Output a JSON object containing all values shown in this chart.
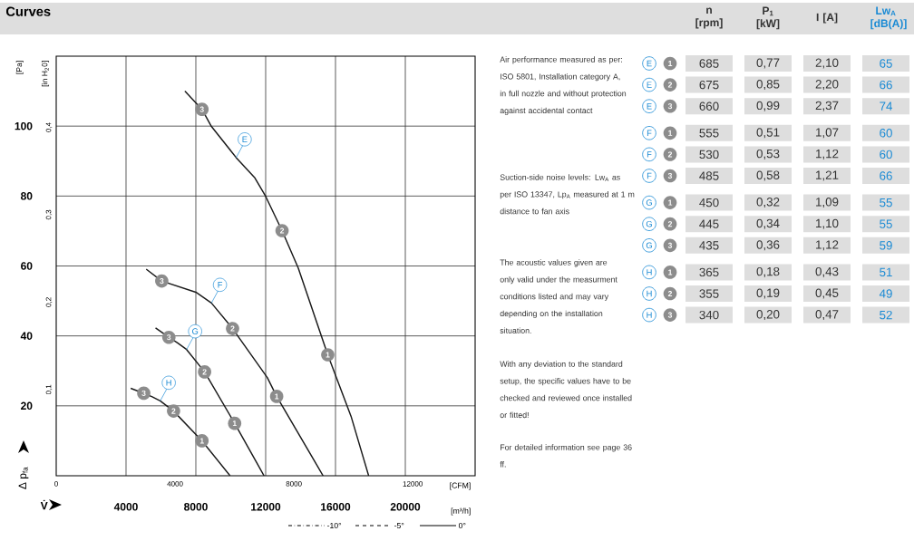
{
  "chart_data": [
    {
      "type": "line",
      "title": "Curves",
      "xlabel": "[m³/h]",
      "ylabel": "[Pa]",
      "x2label": "[CFM]",
      "y2label": "[in H$_{2}$0]",
      "xlim": [
        0,
        24000
      ],
      "xticks": [
        4000,
        8000,
        12000,
        16000,
        20000
      ],
      "ylim": [
        0,
        120
      ],
      "yticks": [
        20,
        40,
        60,
        80,
        100
      ],
      "x2lim": [
        0,
        14100
      ],
      "x2ticks": [
        0,
        4000,
        8000,
        12000
      ],
      "y2lim": [
        0,
        0.48
      ],
      "y2ticks": [
        {
          "value": 0.1,
          "label": "0,1"
        },
        {
          "value": 0.2,
          "label": "0,2"
        },
        {
          "value": 0.3,
          "label": "0,3"
        },
        {
          "value": 0.4,
          "label": "0,4"
        }
      ],
      "grid": true,
      "marker": "none",
      "line_style": "solid",
      "series": [
        {
          "name": "E",
          "color": "#1a1a1a",
          "x": [
            7371,
            8350,
            8892,
            10309,
            11381,
            12000,
            12938,
            13866,
            15557,
            16892,
            17900
          ],
          "values": [
            110,
            104.8,
            99.9,
            91,
            85.2,
            79.9,
            70.1,
            59.4,
            34.6,
            17,
            0
          ]
        },
        {
          "name": "F",
          "color": "#1a1a1a",
          "x": [
            5155,
            6046,
            8000,
            8892,
            10103,
            12093,
            12629,
            15290
          ],
          "values": [
            59.1,
            55.7,
            52.5,
            49.4,
            42.1,
            28.1,
            22.7,
            0
          ]
        },
        {
          "name": "G",
          "color": "#1a1a1a",
          "x": [
            5691,
            6454,
            6950,
            7469,
            8500,
            10222,
            11907
          ],
          "values": [
            42.3,
            39.6,
            38,
            36.1,
            29.7,
            15,
            0
          ]
        },
        {
          "name": "H",
          "color": "#1a1a1a",
          "x": [
            4268,
            5015,
            5500,
            5959,
            6722,
            8350,
            9959
          ],
          "values": [
            25,
            23.6,
            22.6,
            21.4,
            18.5,
            10,
            0
          ]
        }
      ],
      "annotations": [
        "Δ p$_{fa}$",
        "V̇",
        "-10°",
        "-5°",
        "0°",
        {
          "text": "3",
          "x": 8350,
          "y": 104.8
        },
        {
          "text": "2",
          "x": 12938,
          "y": 70.1
        },
        {
          "text": "1",
          "x": 15557,
          "y": 34.6
        },
        {
          "text": "3",
          "x": 6046,
          "y": 55.7
        },
        {
          "text": "2",
          "x": 10103,
          "y": 42.1
        },
        {
          "text": "1",
          "x": 12629,
          "y": 22.7
        },
        {
          "text": "3",
          "x": 6454,
          "y": 39.6
        },
        {
          "text": "2",
          "x": 8500,
          "y": 29.7
        },
        {
          "text": "1",
          "x": 10222,
          "y": 15
        },
        {
          "text": "3",
          "x": 5015,
          "y": 23.6
        },
        {
          "text": "2",
          "x": 6722,
          "y": 18.5
        },
        {
          "text": "1",
          "x": 8350,
          "y": 10
        }
      ]
    },
    {
      "type": "other",
      "categories": [
        null,
        null,
        "n [rpm]",
        "P$_{1}$ [kW]",
        "I [A]",
        "Lw$_{A}$ [dB(A)]"
      ],
      "cell_labels": [
        [
          "E",
          "1",
          "685",
          "0,77",
          "2,10",
          "65"
        ],
        [
          "E",
          "2",
          "675",
          "0,85",
          "2,20",
          "66"
        ],
        [
          "E",
          "3",
          "660",
          "0,99",
          "2,37",
          "74"
        ],
        [
          "F",
          "1",
          "555",
          "0,51",
          "1,07",
          "60"
        ],
        [
          "F",
          "2",
          "530",
          "0,53",
          "1,12",
          "60"
        ],
        [
          "F",
          "3",
          "485",
          "0,58",
          "1,21",
          "66"
        ],
        [
          "G",
          "1",
          "450",
          "0,32",
          "1,09",
          "55"
        ],
        [
          "G",
          "2",
          "445",
          "0,34",
          "1,10",
          "55"
        ],
        [
          "G",
          "3",
          "435",
          "0,36",
          "1,12",
          "59"
        ],
        [
          "H",
          "1",
          "365",
          "0,18",
          "0,43",
          "51"
        ],
        [
          "H",
          "2",
          "355",
          "0,19",
          "0,45",
          "49"
        ],
        [
          "H",
          "3",
          "340",
          "0,20",
          "0,47",
          "52"
        ]
      ],
      "annotations": [
        "Air performance measured as per: ISO 5801, Installation category A, in full nozzle and without protection against accidental contact",
        "Suction-side noise levels: Lw$_{A}$ as per ISO 13347, Lp$_{A}$ measured at 1 m distance to fan axis",
        "The acoustic values given are only valid under the measurment conditions listed and may vary depending on the installation situation.",
        "With any deviation to the standard setup, the specific values have to be checked and reviewed once installed or fitted!",
        "For detailed information see page 36 ff."
      ]
    }
  ]
}
